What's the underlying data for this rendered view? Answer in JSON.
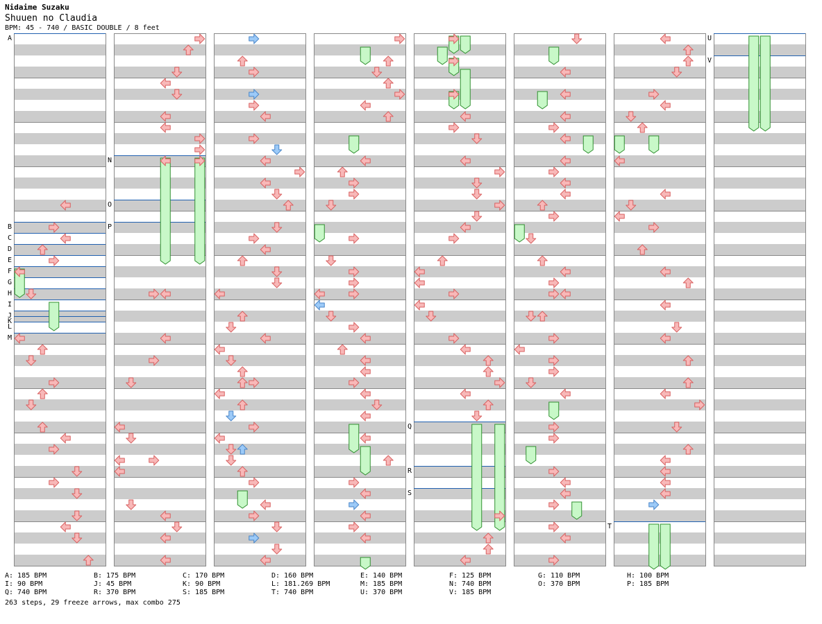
{
  "header": {
    "artist": "Nidaime Suzaku",
    "title": "Shuuen no Claudia",
    "meta": "BPM: 45 - 740 / BASIC DOUBLE / 8 feet"
  },
  "colors": {
    "arrow_red": "#f8b8b8",
    "arrow_red_stroke": "#d86060",
    "arrow_blue": "#9ccaf8",
    "arrow_blue_stroke": "#4a86c8",
    "freeze_green": "#c8f8c8",
    "freeze_stroke": "#309030",
    "stripe_gray": "#cccccc",
    "bpm_line": "#2060b0"
  },
  "icons": {
    "arrow": "dance-arrow-icon",
    "freeze": "freeze-arrow-icon"
  },
  "chart_data": {
    "type": "step-chart",
    "columns": 8,
    "measures_per_column": 12,
    "rows_per_measure": 4,
    "lanes": 8,
    "bpm_markers": [
      {
        "label": "A",
        "col": 0,
        "beat": 0
      },
      {
        "label": "B",
        "col": 0,
        "beat": 17
      },
      {
        "label": "C",
        "col": 0,
        "beat": 18
      },
      {
        "label": "D",
        "col": 0,
        "beat": 19
      },
      {
        "label": "E",
        "col": 0,
        "beat": 20
      },
      {
        "label": "F",
        "col": 0,
        "beat": 21
      },
      {
        "label": "G",
        "col": 0,
        "beat": 22
      },
      {
        "label": "H",
        "col": 0,
        "beat": 23
      },
      {
        "label": "I",
        "col": 0,
        "beat": 24
      },
      {
        "label": "J",
        "col": 0,
        "beat": 25
      },
      {
        "label": "K",
        "col": 0,
        "beat": 25.5
      },
      {
        "label": "L",
        "col": 0,
        "beat": 26
      },
      {
        "label": "M",
        "col": 0,
        "beat": 27
      },
      {
        "label": "N",
        "col": 1,
        "beat": 11
      },
      {
        "label": "O",
        "col": 1,
        "beat": 15
      },
      {
        "label": "P",
        "col": 1,
        "beat": 17
      },
      {
        "label": "Q",
        "col": 4,
        "beat": 35
      },
      {
        "label": "R",
        "col": 4,
        "beat": 39
      },
      {
        "label": "S",
        "col": 4,
        "beat": 41
      },
      {
        "label": "T",
        "col": 6,
        "beat": 44
      },
      {
        "label": "U",
        "col": 7,
        "beat": 0
      },
      {
        "label": "V",
        "col": 7,
        "beat": 2
      }
    ],
    "notes": [
      [
        0,
        15,
        4
      ],
      [
        0,
        17,
        3
      ],
      [
        0,
        18,
        4
      ],
      [
        0,
        19,
        2
      ],
      [
        0,
        20,
        3
      ],
      [
        0,
        21,
        0
      ],
      [
        0,
        23,
        1
      ],
      [
        0,
        27,
        0
      ],
      [
        0,
        28,
        2
      ],
      [
        0,
        29,
        1
      ],
      [
        0,
        31,
        3
      ],
      [
        0,
        32,
        2
      ],
      [
        0,
        33,
        1
      ],
      [
        0,
        35,
        2
      ],
      [
        0,
        36,
        4
      ],
      [
        0,
        37,
        3
      ],
      [
        0,
        39,
        5
      ],
      [
        0,
        40,
        3
      ],
      [
        0,
        41,
        5
      ],
      [
        0,
        43,
        5
      ],
      [
        0,
        44,
        4
      ],
      [
        0,
        45,
        5
      ],
      [
        0,
        47,
        6
      ],
      [
        1,
        0,
        7
      ],
      [
        1,
        1,
        6
      ],
      [
        1,
        3,
        5
      ],
      [
        1,
        4,
        4
      ],
      [
        1,
        5,
        5
      ],
      [
        1,
        7,
        4
      ],
      [
        1,
        8,
        4
      ],
      [
        1,
        9,
        7
      ],
      [
        1,
        10,
        7
      ],
      [
        1,
        11,
        4
      ],
      [
        1,
        11,
        7
      ],
      [
        1,
        23,
        3
      ],
      [
        1,
        23,
        4
      ],
      [
        1,
        27,
        4
      ],
      [
        1,
        29,
        3
      ],
      [
        1,
        31,
        1
      ],
      [
        1,
        35,
        0
      ],
      [
        1,
        36,
        1
      ],
      [
        1,
        38,
        0
      ],
      [
        1,
        38,
        3
      ],
      [
        1,
        39,
        0
      ],
      [
        1,
        42,
        1
      ],
      [
        1,
        43,
        4
      ],
      [
        1,
        44,
        5
      ],
      [
        1,
        45,
        4
      ],
      [
        1,
        47,
        4
      ],
      [
        2,
        0,
        3
      ],
      [
        2,
        2,
        2
      ],
      [
        2,
        3,
        3
      ],
      [
        2,
        5,
        3
      ],
      [
        2,
        6,
        3
      ],
      [
        2,
        7,
        4
      ],
      [
        2,
        9,
        3
      ],
      [
        2,
        10,
        5
      ],
      [
        2,
        11,
        4
      ],
      [
        2,
        12,
        7
      ],
      [
        2,
        13,
        4
      ],
      [
        2,
        14,
        5
      ],
      [
        2,
        15,
        6
      ],
      [
        2,
        17,
        5
      ],
      [
        2,
        18,
        3
      ],
      [
        2,
        19,
        4
      ],
      [
        2,
        20,
        2
      ],
      [
        2,
        21,
        5
      ],
      [
        2,
        22,
        5
      ],
      [
        2,
        23,
        0
      ],
      [
        2,
        25,
        2
      ],
      [
        2,
        26,
        1
      ],
      [
        2,
        27,
        4
      ],
      [
        2,
        28,
        0
      ],
      [
        2,
        29,
        1
      ],
      [
        2,
        30,
        2
      ],
      [
        2,
        31,
        2
      ],
      [
        2,
        31,
        3
      ],
      [
        2,
        32,
        0
      ],
      [
        2,
        33,
        2
      ],
      [
        2,
        34,
        1
      ],
      [
        2,
        35,
        3
      ],
      [
        2,
        36,
        0
      ],
      [
        2,
        37,
        1
      ],
      [
        2,
        37,
        2
      ],
      [
        2,
        38,
        1
      ],
      [
        2,
        39,
        2
      ],
      [
        2,
        40,
        3
      ],
      [
        2,
        42,
        4
      ],
      [
        2,
        43,
        3
      ],
      [
        2,
        44,
        5
      ],
      [
        2,
        45,
        3
      ],
      [
        2,
        46,
        5
      ],
      [
        2,
        47,
        4
      ],
      [
        3,
        0,
        7
      ],
      [
        3,
        2,
        6
      ],
      [
        3,
        3,
        5
      ],
      [
        3,
        4,
        6
      ],
      [
        3,
        5,
        7
      ],
      [
        3,
        6,
        4
      ],
      [
        3,
        7,
        6
      ],
      [
        3,
        11,
        4
      ],
      [
        3,
        12,
        2
      ],
      [
        3,
        13,
        3
      ],
      [
        3,
        14,
        3
      ],
      [
        3,
        15,
        1
      ],
      [
        3,
        18,
        3
      ],
      [
        3,
        20,
        1
      ],
      [
        3,
        21,
        3
      ],
      [
        3,
        22,
        3
      ],
      [
        3,
        23,
        0
      ],
      [
        3,
        23,
        3
      ],
      [
        3,
        24,
        0
      ],
      [
        3,
        25,
        1
      ],
      [
        3,
        26,
        3
      ],
      [
        3,
        27,
        4
      ],
      [
        3,
        28,
        2
      ],
      [
        3,
        29,
        4
      ],
      [
        3,
        30,
        4
      ],
      [
        3,
        31,
        3
      ],
      [
        3,
        32,
        4
      ],
      [
        3,
        33,
        5
      ],
      [
        3,
        34,
        4
      ],
      [
        3,
        36,
        4
      ],
      [
        3,
        38,
        6
      ],
      [
        3,
        40,
        3
      ],
      [
        3,
        41,
        4
      ],
      [
        3,
        42,
        3
      ],
      [
        3,
        43,
        4
      ],
      [
        3,
        44,
        3
      ],
      [
        3,
        45,
        4
      ],
      [
        4,
        0,
        3
      ],
      [
        4,
        2,
        3
      ],
      [
        4,
        5,
        3
      ],
      [
        4,
        7,
        4
      ],
      [
        4,
        8,
        3
      ],
      [
        4,
        9,
        5
      ],
      [
        4,
        11,
        4
      ],
      [
        4,
        12,
        7
      ],
      [
        4,
        13,
        5
      ],
      [
        4,
        14,
        5
      ],
      [
        4,
        15,
        7
      ],
      [
        4,
        16,
        5
      ],
      [
        4,
        17,
        4
      ],
      [
        4,
        18,
        3
      ],
      [
        4,
        20,
        2
      ],
      [
        4,
        21,
        0
      ],
      [
        4,
        22,
        0
      ],
      [
        4,
        23,
        3
      ],
      [
        4,
        24,
        0
      ],
      [
        4,
        25,
        1
      ],
      [
        4,
        27,
        3
      ],
      [
        4,
        28,
        4
      ],
      [
        4,
        29,
        6
      ],
      [
        4,
        30,
        6
      ],
      [
        4,
        31,
        7
      ],
      [
        4,
        32,
        4
      ],
      [
        4,
        33,
        6
      ],
      [
        4,
        34,
        5
      ],
      [
        4,
        43,
        7
      ],
      [
        4,
        45,
        6
      ],
      [
        4,
        46,
        6
      ],
      [
        4,
        47,
        4
      ],
      [
        5,
        0,
        5
      ],
      [
        5,
        3,
        4
      ],
      [
        5,
        5,
        4
      ],
      [
        5,
        7,
        4
      ],
      [
        5,
        8,
        3
      ],
      [
        5,
        9,
        4
      ],
      [
        5,
        11,
        4
      ],
      [
        5,
        12,
        3
      ],
      [
        5,
        13,
        4
      ],
      [
        5,
        14,
        4
      ],
      [
        5,
        15,
        2
      ],
      [
        5,
        16,
        3
      ],
      [
        5,
        18,
        1
      ],
      [
        5,
        20,
        2
      ],
      [
        5,
        21,
        4
      ],
      [
        5,
        22,
        3
      ],
      [
        5,
        23,
        3
      ],
      [
        5,
        23,
        4
      ],
      [
        5,
        25,
        1
      ],
      [
        5,
        25,
        2
      ],
      [
        5,
        27,
        3
      ],
      [
        5,
        28,
        0
      ],
      [
        5,
        29,
        3
      ],
      [
        5,
        30,
        3
      ],
      [
        5,
        31,
        1
      ],
      [
        5,
        32,
        4
      ],
      [
        5,
        35,
        3
      ],
      [
        5,
        36,
        3
      ],
      [
        5,
        39,
        3
      ],
      [
        5,
        40,
        4
      ],
      [
        5,
        41,
        4
      ],
      [
        5,
        42,
        3
      ],
      [
        5,
        44,
        3
      ],
      [
        5,
        45,
        4
      ],
      [
        5,
        47,
        3
      ],
      [
        6,
        0,
        4
      ],
      [
        6,
        1,
        6
      ],
      [
        6,
        2,
        6
      ],
      [
        6,
        3,
        5
      ],
      [
        6,
        5,
        3
      ],
      [
        6,
        6,
        4
      ],
      [
        6,
        7,
        1
      ],
      [
        6,
        8,
        2
      ],
      [
        6,
        11,
        0
      ],
      [
        6,
        14,
        4
      ],
      [
        6,
        15,
        1
      ],
      [
        6,
        16,
        0
      ],
      [
        6,
        17,
        3
      ],
      [
        6,
        19,
        2
      ],
      [
        6,
        21,
        4
      ],
      [
        6,
        22,
        6
      ],
      [
        6,
        24,
        4
      ],
      [
        6,
        26,
        5
      ],
      [
        6,
        27,
        4
      ],
      [
        6,
        29,
        6
      ],
      [
        6,
        31,
        6
      ],
      [
        6,
        32,
        4
      ],
      [
        6,
        33,
        7
      ],
      [
        6,
        35,
        5
      ],
      [
        6,
        37,
        6
      ],
      [
        6,
        38,
        4
      ],
      [
        6,
        39,
        4
      ],
      [
        6,
        40,
        4
      ],
      [
        6,
        41,
        4
      ],
      [
        6,
        42,
        3
      ]
    ],
    "shocks_blue_note": [
      [
        1,
        37,
        1
      ],
      [
        1,
        40,
        0
      ],
      [
        2,
        0,
        3
      ],
      [
        2,
        5,
        3
      ],
      [
        2,
        10,
        5
      ],
      [
        2,
        19,
        5
      ],
      [
        2,
        24,
        2
      ],
      [
        2,
        34,
        1
      ],
      [
        2,
        37,
        2
      ],
      [
        2,
        38,
        2
      ],
      [
        2,
        45,
        3
      ],
      [
        3,
        4,
        5
      ],
      [
        3,
        14,
        1
      ],
      [
        3,
        24,
        0
      ],
      [
        3,
        29,
        3
      ],
      [
        3,
        42,
        3
      ],
      [
        4,
        14,
        6
      ],
      [
        4,
        24,
        3
      ],
      [
        4,
        29,
        7
      ],
      [
        4,
        45,
        5
      ],
      [
        5,
        14,
        1
      ],
      [
        5,
        29,
        1
      ],
      [
        5,
        45,
        3
      ],
      [
        6,
        13,
        1
      ],
      [
        6,
        25,
        4
      ],
      [
        6,
        28,
        6
      ],
      [
        6,
        36,
        6
      ],
      [
        6,
        42,
        3
      ]
    ],
    "freezes": [
      [
        0,
        21,
        23,
        0
      ],
      [
        0,
        24,
        26,
        3
      ],
      [
        1,
        11,
        20,
        4
      ],
      [
        1,
        11,
        20,
        7
      ],
      [
        2,
        41,
        42,
        2
      ],
      [
        3,
        1,
        2,
        4
      ],
      [
        3,
        9,
        10,
        3
      ],
      [
        3,
        17,
        18,
        0
      ],
      [
        3,
        35,
        37,
        3
      ],
      [
        3,
        37,
        39,
        4
      ],
      [
        3,
        47,
        48,
        4
      ],
      [
        4,
        0,
        1,
        4
      ],
      [
        4,
        0,
        1,
        3
      ],
      [
        4,
        1,
        2,
        2
      ],
      [
        4,
        2,
        3,
        3
      ],
      [
        4,
        3,
        6,
        4
      ],
      [
        4,
        5,
        6,
        3
      ],
      [
        4,
        35,
        44,
        5
      ],
      [
        4,
        35,
        44,
        7
      ],
      [
        5,
        1,
        2,
        3
      ],
      [
        5,
        5,
        6,
        2
      ],
      [
        5,
        9,
        10,
        6
      ],
      [
        5,
        17,
        18,
        0
      ],
      [
        5,
        33,
        34,
        3
      ],
      [
        5,
        37,
        38,
        1
      ],
      [
        5,
        42,
        43,
        5
      ],
      [
        6,
        9,
        10,
        0
      ],
      [
        6,
        9,
        10,
        3
      ],
      [
        6,
        44,
        48,
        3
      ],
      [
        6,
        44,
        48,
        4
      ],
      [
        7,
        0,
        8,
        3
      ],
      [
        7,
        0,
        8,
        4
      ]
    ]
  },
  "bpm_legend": [
    "A: 185 BPM",
    "B: 175 BPM",
    "C: 170 BPM",
    "D: 160 BPM",
    "E: 140 BPM",
    "F: 125 BPM",
    "G: 110 BPM",
    "H: 100 BPM",
    "I: 90 BPM",
    "J: 45 BPM",
    "K: 90 BPM",
    "L: 181.269 BPM",
    "M: 185 BPM",
    "N: 740 BPM",
    "O: 370 BPM",
    "P: 185 BPM",
    "Q: 740 BPM",
    "R: 370 BPM",
    "S: 185 BPM",
    "T: 740 BPM",
    "U: 370 BPM",
    "V: 185 BPM"
  ],
  "summary": "263 steps, 29 freeze arrows, max combo 275"
}
